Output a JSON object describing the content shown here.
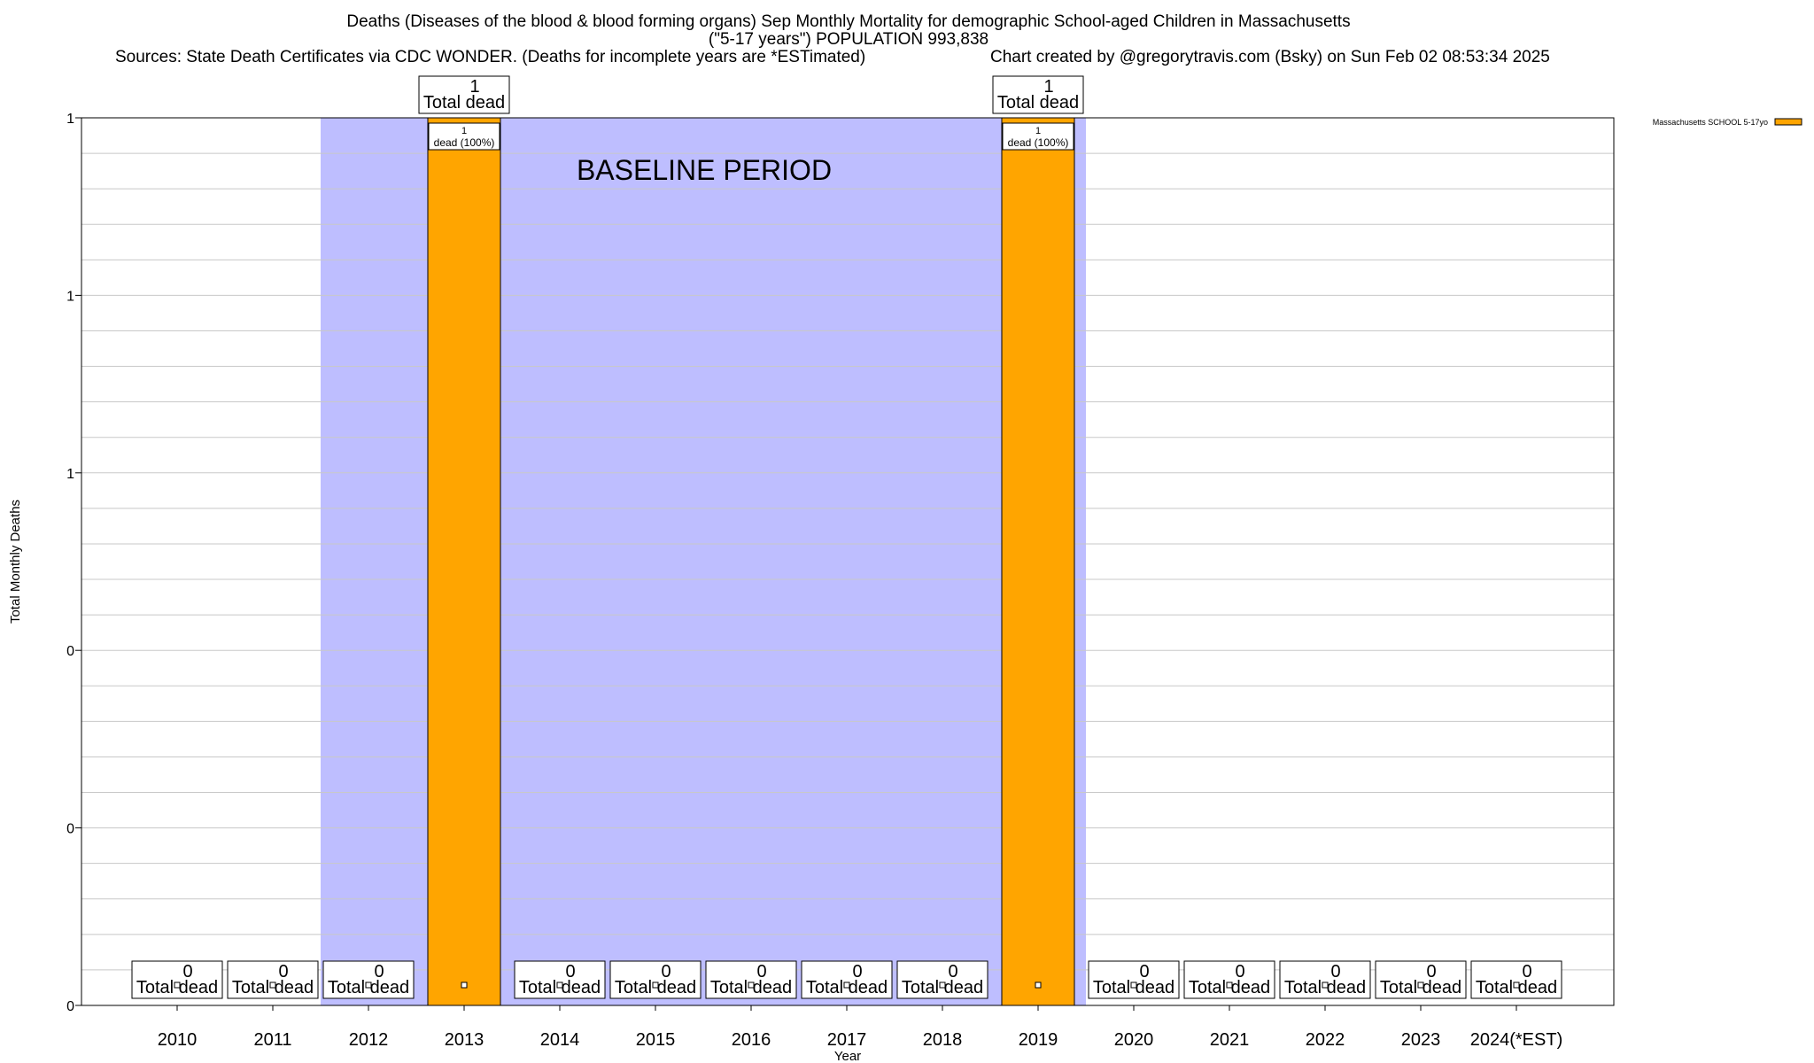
{
  "header": {
    "title_line1": "Deaths (Diseases of the blood & blood forming organs) Sep Monthly Mortality for demographic School-aged Children in Massachusetts",
    "title_line2": "(\"5-17 years\") POPULATION 993,838",
    "sources": "Sources: State Death Certificates via CDC WONDER. (Deaths for incomplete years are *ESTimated)",
    "credit": "Chart created by @gregorytravis.com (Bsky) on Sun Feb 02 08:53:34 2025"
  },
  "colors": {
    "bar": "#FFA500",
    "baseline_band": "#BEBEFF",
    "grid": "#C8C8C8",
    "axis": "#000000"
  },
  "chart_data": {
    "type": "bar",
    "categories": [
      "2010",
      "2011",
      "2012",
      "2013",
      "2014",
      "2015",
      "2016",
      "2017",
      "2018",
      "2019",
      "2020",
      "2021",
      "2022",
      "2023",
      "2024(*EST)"
    ],
    "series": [
      {
        "name": "Massachusetts SCHOOL 5-17yo",
        "values": [
          0,
          0,
          0,
          1,
          0,
          0,
          0,
          0,
          0,
          1,
          0,
          0,
          0,
          0,
          0
        ]
      }
    ],
    "total_labels": [
      "0",
      "0",
      "0",
      "1",
      "0",
      "0",
      "0",
      "0",
      "0",
      "1",
      "0",
      "0",
      "0",
      "0",
      "0"
    ],
    "total_suffix": "Total dead",
    "segment_labels": [
      {
        "category": "2013",
        "value": "1",
        "text": "dead (100%)"
      },
      {
        "category": "2019",
        "value": "1",
        "text": "dead (100%)"
      }
    ],
    "baseline_period": {
      "label": "BASELINE PERIOD",
      "from": "2012",
      "to": "2019"
    },
    "xlabel": "Year",
    "ylabel": "Total Monthly Deaths",
    "ylim": [
      0,
      1
    ],
    "yticks": [
      0,
      0.2,
      0.4,
      0.6,
      0.8,
      1
    ],
    "ytick_labels": [
      "0",
      "0",
      "0",
      "1",
      "1",
      "1"
    ],
    "grid": true,
    "legend": "top-right"
  }
}
